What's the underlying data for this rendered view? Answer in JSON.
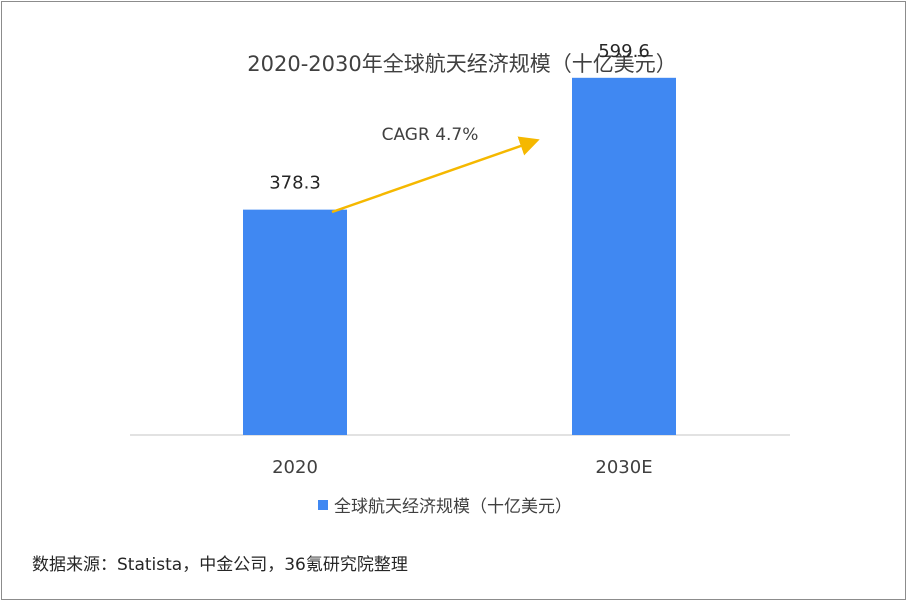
{
  "chart_data": {
    "type": "bar",
    "title": "2020-2030年全球航天经济规模（十亿美元）",
    "categories": [
      "2020",
      "2030E"
    ],
    "series": [
      {
        "name": "全球航天经济规模（十亿美元）",
        "values": [
          378.3,
          599.6
        ],
        "color": "#4088F2"
      }
    ],
    "data_labels": [
      "378.3",
      "599.6"
    ],
    "annotation": {
      "text": "CAGR 4.7%",
      "arrow_color": "#F5B800"
    },
    "xlabel": "",
    "ylabel": "",
    "ylim": [
      0,
      700
    ],
    "grid": false,
    "legend": "bottom-center"
  },
  "source": "数据来源：Statista，中金公司，36氪研究院整理"
}
